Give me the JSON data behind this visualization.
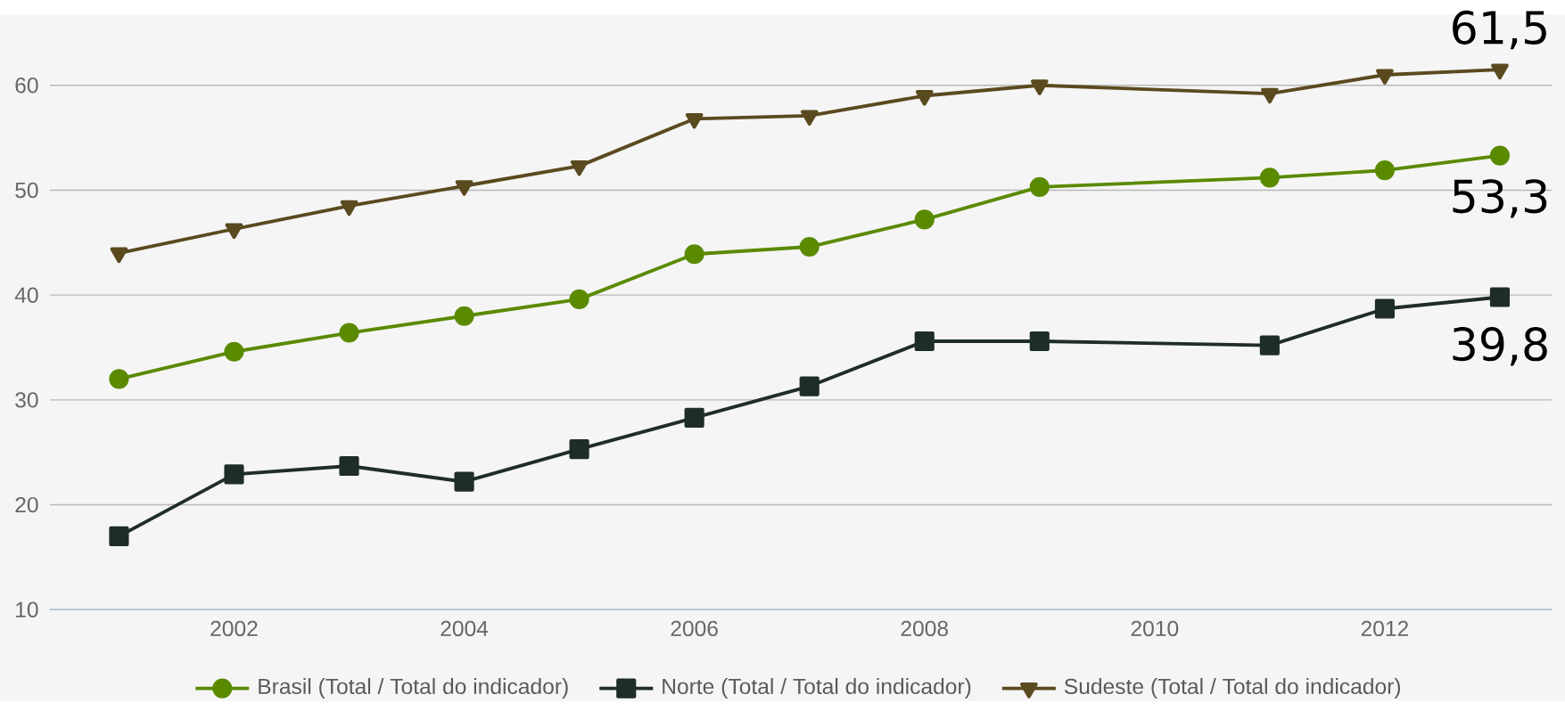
{
  "chart_data": {
    "type": "line",
    "x": [
      2001,
      2002,
      2003,
      2004,
      2005,
      2006,
      2007,
      2008,
      2009,
      2011,
      2012,
      2013
    ],
    "series": [
      {
        "name": "Brasil (Total / Total do indicador)",
        "color": "#5a8a00",
        "marker": "circle",
        "values": [
          32.0,
          34.6,
          36.4,
          38.0,
          39.6,
          43.9,
          44.6,
          47.2,
          50.3,
          51.2,
          51.9,
          53.3
        ],
        "value_labels": [
          null,
          null,
          null,
          null,
          null,
          null,
          null,
          null,
          null,
          null,
          null,
          "53,3"
        ]
      },
      {
        "name": "Norte (Total / Total do indicador)",
        "color": "#1f2d2a",
        "marker": "square",
        "values": [
          17.0,
          22.9,
          23.7,
          22.2,
          25.3,
          28.3,
          31.3,
          35.6,
          35.6,
          35.2,
          38.7,
          39.8
        ],
        "value_labels": [
          null,
          null,
          null,
          null,
          null,
          null,
          null,
          null,
          null,
          null,
          null,
          "39,8"
        ]
      },
      {
        "name": "Sudeste (Total / Total do indicador)",
        "color": "#5a4a1f",
        "marker": "triangle",
        "values": [
          44.0,
          46.3,
          48.5,
          50.4,
          52.3,
          56.8,
          57.1,
          59.0,
          60.0,
          59.2,
          61.0,
          61.5
        ],
        "value_labels": [
          null,
          null,
          null,
          null,
          null,
          null,
          null,
          null,
          null,
          null,
          null,
          "61,5"
        ]
      }
    ],
    "xlim": [
      2000.4,
      2013.45
    ],
    "xticks": [
      2002,
      2004,
      2006,
      2008,
      2010,
      2012
    ],
    "ylim": [
      10,
      66.5
    ],
    "yticks": [
      10,
      20,
      30,
      40,
      50,
      60
    ],
    "grid": "y",
    "legend": "bottom",
    "line_style": "solid"
  }
}
